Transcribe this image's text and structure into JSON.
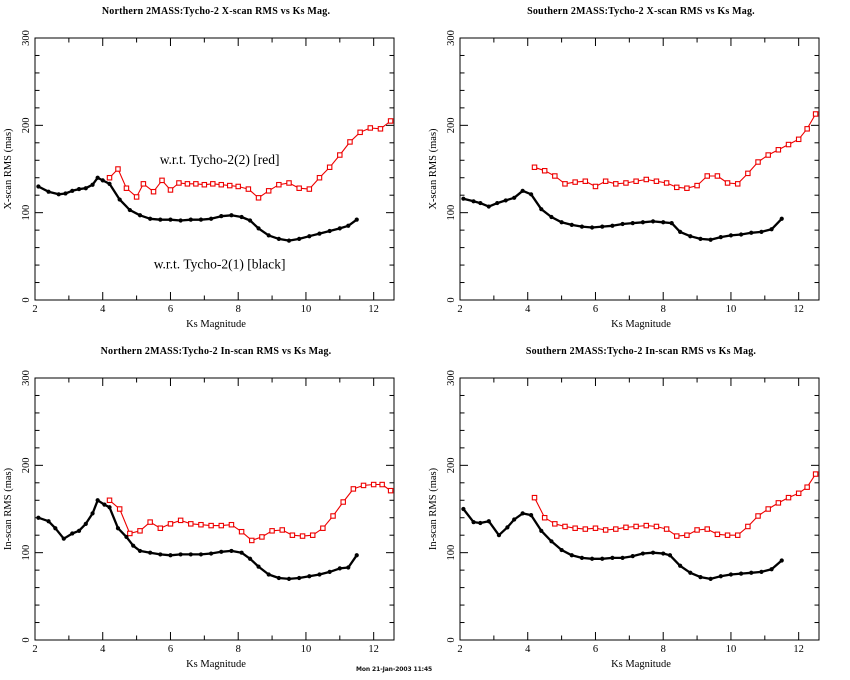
{
  "page": {
    "background": "#ffffff",
    "timestamp": "Mon 21-Jan-2003 11:45"
  },
  "colors": {
    "series_red": "#ee0000",
    "series_black": "#000000",
    "axis": "#000000"
  },
  "chart_data": [
    {
      "type": "line",
      "title": "Northern 2MASS:Tycho-2 X-scan RMS vs Ks Mag.",
      "xlabel": "Ks Magnitude",
      "ylabel": "X-scan RMS (mas)",
      "xlim": [
        2,
        12.6
      ],
      "ylim": [
        0,
        300
      ],
      "x_major_ticks": [
        2,
        4,
        6,
        8,
        10,
        12
      ],
      "x_minor_ticks": [
        3,
        5,
        7,
        9,
        11
      ],
      "y_major_ticks": [
        0,
        100,
        200,
        300
      ],
      "y_minor_step": 20,
      "grid": false,
      "legend_position": "none",
      "annotations": [
        {
          "text": "w.r.t. Tycho-2(2) [red]",
          "x": 7.45,
          "y": 161
        },
        {
          "text": "w.r.t. Tycho-2(1) [black]",
          "x": 7.45,
          "y": 41
        }
      ],
      "series": [
        {
          "id": "tycho2-2-red",
          "name": "w.r.t. Tycho-2(2) [red]",
          "color": "#ee0000",
          "marker": "open-square",
          "x": [
            4.2,
            4.45,
            4.7,
            5.0,
            5.2,
            5.5,
            5.75,
            6.0,
            6.25,
            6.5,
            6.75,
            7.0,
            7.25,
            7.5,
            7.75,
            8.0,
            8.3,
            8.6,
            8.9,
            9.2,
            9.5,
            9.8,
            10.1,
            10.4,
            10.7,
            11.0,
            11.3,
            11.6,
            11.9,
            12.2,
            12.5
          ],
          "y": [
            140,
            150,
            128,
            118,
            133,
            124,
            137,
            126,
            134,
            133,
            133,
            132,
            133,
            132,
            131,
            130,
            127,
            117,
            125,
            132,
            134,
            128,
            127,
            140,
            152,
            166,
            181,
            192,
            197,
            196,
            205
          ]
        },
        {
          "id": "tycho2-1-black",
          "name": "w.r.t. Tycho-2(1) [black]",
          "color": "#000000",
          "marker": "filled-circle",
          "x": [
            2.1,
            2.4,
            2.7,
            2.9,
            3.1,
            3.3,
            3.5,
            3.7,
            3.85,
            4.0,
            4.2,
            4.5,
            4.8,
            5.1,
            5.4,
            5.7,
            6.0,
            6.3,
            6.6,
            6.9,
            7.2,
            7.5,
            7.8,
            8.1,
            8.35,
            8.6,
            8.9,
            9.2,
            9.5,
            9.8,
            10.1,
            10.4,
            10.7,
            11.0,
            11.25,
            11.5
          ],
          "y": [
            130,
            124,
            121,
            122,
            125,
            127,
            128,
            132,
            140,
            137,
            133,
            115,
            103,
            97,
            93,
            92,
            92,
            91,
            92,
            92,
            93,
            96,
            97,
            95,
            91,
            82,
            74,
            70,
            68,
            70,
            73,
            76,
            79,
            82,
            85,
            92
          ]
        }
      ]
    },
    {
      "type": "line",
      "title": "Southern 2MASS:Tycho-2 X-scan RMS vs Ks Mag.",
      "xlabel": "Ks Magnitude",
      "ylabel": "X-scan RMS (mas)",
      "xlim": [
        2,
        12.6
      ],
      "ylim": [
        0,
        300
      ],
      "x_major_ticks": [
        2,
        4,
        6,
        8,
        10,
        12
      ],
      "x_minor_ticks": [
        3,
        5,
        7,
        9,
        11
      ],
      "y_major_ticks": [
        0,
        100,
        200,
        300
      ],
      "y_minor_step": 20,
      "grid": false,
      "legend_position": "none",
      "annotations": [],
      "series": [
        {
          "id": "tycho2-2-red",
          "name": "w.r.t. Tycho-2(2) [red]",
          "color": "#ee0000",
          "marker": "open-square",
          "x": [
            4.2,
            4.5,
            4.8,
            5.1,
            5.4,
            5.7,
            6.0,
            6.3,
            6.6,
            6.9,
            7.2,
            7.5,
            7.8,
            8.1,
            8.4,
            8.7,
            9.0,
            9.3,
            9.6,
            9.9,
            10.2,
            10.5,
            10.8,
            11.1,
            11.4,
            11.7,
            12.0,
            12.25,
            12.5
          ],
          "y": [
            152,
            148,
            142,
            133,
            135,
            136,
            130,
            136,
            133,
            134,
            136,
            138,
            136,
            134,
            129,
            128,
            131,
            142,
            142,
            134,
            133,
            145,
            158,
            166,
            172,
            178,
            184,
            196,
            213
          ]
        },
        {
          "id": "tycho2-1-black",
          "name": "w.r.t. Tycho-2(1) [black]",
          "color": "#000000",
          "marker": "filled-circle",
          "x": [
            2.1,
            2.4,
            2.6,
            2.85,
            3.1,
            3.35,
            3.6,
            3.85,
            4.1,
            4.4,
            4.7,
            5.0,
            5.3,
            5.6,
            5.9,
            6.2,
            6.5,
            6.8,
            7.1,
            7.4,
            7.7,
            8.0,
            8.25,
            8.5,
            8.8,
            9.1,
            9.4,
            9.7,
            10.0,
            10.3,
            10.6,
            10.9,
            11.2,
            11.5
          ],
          "y": [
            116,
            113,
            111,
            107,
            111,
            114,
            117,
            125,
            121,
            104,
            95,
            89,
            86,
            84,
            83,
            84,
            85,
            87,
            88,
            89,
            90,
            89,
            88,
            78,
            73,
            70,
            69,
            72,
            74,
            75,
            77,
            78,
            81,
            93
          ]
        }
      ]
    },
    {
      "type": "line",
      "title": "Northern 2MASS:Tycho-2 In-scan RMS vs Ks Mag.",
      "xlabel": "Ks Magnitude",
      "ylabel": "In-scan RMS (mas)",
      "xlim": [
        2,
        12.6
      ],
      "ylim": [
        0,
        300
      ],
      "x_major_ticks": [
        2,
        4,
        6,
        8,
        10,
        12
      ],
      "x_minor_ticks": [
        3,
        5,
        7,
        9,
        11
      ],
      "y_major_ticks": [
        0,
        100,
        200,
        300
      ],
      "y_minor_step": 20,
      "grid": false,
      "legend_position": "none",
      "annotations": [],
      "series": [
        {
          "id": "tycho2-2-red",
          "name": "w.r.t. Tycho-2(2) [red]",
          "color": "#ee0000",
          "marker": "open-square",
          "x": [
            4.2,
            4.5,
            4.8,
            5.1,
            5.4,
            5.7,
            6.0,
            6.3,
            6.6,
            6.9,
            7.2,
            7.5,
            7.8,
            8.1,
            8.4,
            8.7,
            9.0,
            9.3,
            9.6,
            9.9,
            10.2,
            10.5,
            10.8,
            11.1,
            11.4,
            11.7,
            12.0,
            12.25,
            12.5
          ],
          "y": [
            160,
            150,
            122,
            125,
            135,
            128,
            133,
            137,
            133,
            132,
            131,
            131,
            132,
            124,
            114,
            118,
            125,
            126,
            120,
            119,
            120,
            128,
            142,
            158,
            173,
            177,
            178,
            178,
            171
          ]
        },
        {
          "id": "tycho2-1-black",
          "name": "w.r.t. Tycho-2(1) [black]",
          "color": "#000000",
          "marker": "filled-circle",
          "x": [
            2.1,
            2.4,
            2.6,
            2.85,
            3.1,
            3.3,
            3.5,
            3.7,
            3.85,
            4.05,
            4.2,
            4.45,
            4.7,
            4.9,
            5.1,
            5.4,
            5.7,
            6.0,
            6.3,
            6.6,
            6.9,
            7.2,
            7.5,
            7.8,
            8.1,
            8.35,
            8.6,
            8.9,
            9.2,
            9.5,
            9.8,
            10.1,
            10.4,
            10.7,
            11.0,
            11.25,
            11.5
          ],
          "y": [
            140,
            136,
            128,
            116,
            122,
            125,
            133,
            145,
            160,
            155,
            152,
            128,
            118,
            108,
            102,
            100,
            98,
            97,
            98,
            98,
            98,
            99,
            101,
            102,
            100,
            93,
            84,
            75,
            71,
            70,
            71,
            73,
            75,
            78,
            82,
            83,
            97
          ]
        }
      ]
    },
    {
      "type": "line",
      "title": "Southern 2MASS:Tycho-2 In-scan RMS vs Ks Mag.",
      "xlabel": "Ks Magnitude",
      "ylabel": "In-scan RMS (mas)",
      "xlim": [
        2,
        12.6
      ],
      "ylim": [
        0,
        300
      ],
      "x_major_ticks": [
        2,
        4,
        6,
        8,
        10,
        12
      ],
      "x_minor_ticks": [
        3,
        5,
        7,
        9,
        11
      ],
      "y_major_ticks": [
        0,
        100,
        200,
        300
      ],
      "y_minor_step": 20,
      "grid": false,
      "legend_position": "none",
      "annotations": [],
      "series": [
        {
          "id": "tycho2-2-red",
          "name": "w.r.t. Tycho-2(2) [red]",
          "color": "#ee0000",
          "marker": "open-square",
          "x": [
            4.2,
            4.5,
            4.8,
            5.1,
            5.4,
            5.7,
            6.0,
            6.3,
            6.6,
            6.9,
            7.2,
            7.5,
            7.8,
            8.1,
            8.4,
            8.7,
            9.0,
            9.3,
            9.6,
            9.9,
            10.2,
            10.5,
            10.8,
            11.1,
            11.4,
            11.7,
            12.0,
            12.25,
            12.5
          ],
          "y": [
            163,
            140,
            133,
            130,
            128,
            127,
            128,
            126,
            127,
            129,
            130,
            131,
            130,
            127,
            119,
            120,
            126,
            127,
            121,
            120,
            120,
            130,
            142,
            150,
            157,
            163,
            168,
            175,
            190
          ]
        },
        {
          "id": "tycho2-1-black",
          "name": "w.r.t. Tycho-2(1) [black]",
          "color": "#000000",
          "marker": "filled-circle",
          "x": [
            2.1,
            2.4,
            2.6,
            2.85,
            3.15,
            3.4,
            3.6,
            3.85,
            4.1,
            4.4,
            4.7,
            5.0,
            5.3,
            5.6,
            5.9,
            6.2,
            6.5,
            6.8,
            7.1,
            7.4,
            7.7,
            8.0,
            8.2,
            8.5,
            8.8,
            9.1,
            9.4,
            9.7,
            10.0,
            10.3,
            10.6,
            10.9,
            11.2,
            11.5
          ],
          "y": [
            150,
            135,
            134,
            136,
            120,
            129,
            138,
            145,
            143,
            125,
            113,
            103,
            97,
            94,
            93,
            93,
            94,
            94,
            96,
            99,
            100,
            99,
            97,
            85,
            77,
            72,
            70,
            73,
            75,
            76,
            77,
            78,
            81,
            91
          ]
        }
      ]
    }
  ]
}
